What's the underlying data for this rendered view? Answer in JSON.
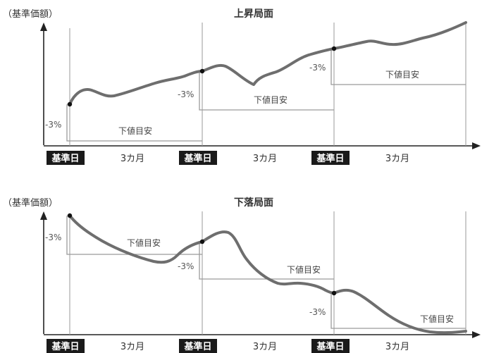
{
  "panels": [
    {
      "id": "rising",
      "title": "上昇局面",
      "ylabel": "（基準価額）",
      "pct_labels": [
        "-3%",
        "-3%",
        "-3%"
      ],
      "guide_labels": [
        "下値目安",
        "下値目安",
        "下値目安"
      ],
      "timeline": [
        "基準日",
        "3カ月",
        "基準日",
        "3カ月",
        "基準日",
        "3カ月"
      ]
    },
    {
      "id": "falling",
      "title": "下落局面",
      "ylabel": "（基準価額）",
      "pct_labels": [
        "-3%",
        "-3%",
        "-3%"
      ],
      "guide_labels": [
        "下値目安",
        "下値目安",
        "下値目安"
      ],
      "timeline": [
        "基準日",
        "3カ月",
        "基準日",
        "3カ月",
        "基準日",
        "3カ月"
      ]
    }
  ],
  "colors": {
    "curve": "#6e6e6e",
    "axis": "#222222",
    "guide_line": "#9a9a9a",
    "badge_bg": "#1a1a1a"
  }
}
